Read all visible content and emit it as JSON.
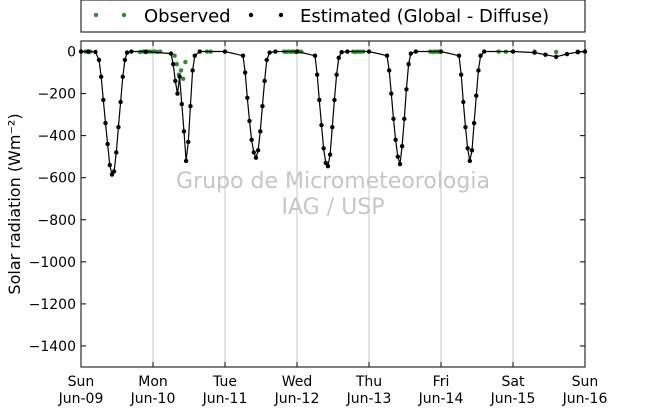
{
  "chart_data": {
    "type": "scatter",
    "title": "",
    "xlabel": "",
    "ylabel": "Solar radiation (Wm⁻²)",
    "ylim": [
      -1500,
      50
    ],
    "xlim": [
      0,
      7
    ],
    "yticks": [
      0,
      -200,
      -400,
      -600,
      -800,
      -1000,
      -1200,
      -1400
    ],
    "x_ticks": [
      {
        "day": "Sun",
        "date": "Jun-09",
        "x": 0
      },
      {
        "day": "Mon",
        "date": "Jun-10",
        "x": 1
      },
      {
        "day": "Tue",
        "date": "Jun-11",
        "x": 2
      },
      {
        "day": "Wed",
        "date": "Jun-12",
        "x": 3
      },
      {
        "day": "Thu",
        "date": "Jun-13",
        "x": 4
      },
      {
        "day": "Fri",
        "date": "Jun-14",
        "x": 5
      },
      {
        "day": "Sat",
        "date": "Jun-15",
        "x": 6
      },
      {
        "day": "Sun",
        "date": "Jun-16",
        "x": 7
      }
    ],
    "grid": "vertical",
    "legend_position": "top",
    "watermark": [
      "Grupo de Micrometeorologia",
      "IAG / USP"
    ],
    "series": [
      {
        "name": "Observed",
        "color": "#2e8b2e",
        "points": [
          [
            0.06,
            0
          ],
          [
            0.1,
            -2
          ],
          [
            0.13,
            0
          ],
          [
            0.82,
            -2
          ],
          [
            0.86,
            0
          ],
          [
            0.9,
            -3
          ],
          [
            0.94,
            0
          ],
          [
            0.98,
            -1
          ],
          [
            1.02,
            0
          ],
          [
            1.06,
            -2
          ],
          [
            1.1,
            0
          ],
          [
            1.3,
            -20
          ],
          [
            1.33,
            -60
          ],
          [
            1.36,
            -110
          ],
          [
            1.39,
            -90
          ],
          [
            1.42,
            -130
          ],
          [
            1.45,
            -50
          ],
          [
            1.75,
            0
          ],
          [
            1.8,
            -1
          ],
          [
            2.82,
            0
          ],
          [
            2.85,
            -2
          ],
          [
            2.88,
            0
          ],
          [
            2.92,
            -1
          ],
          [
            2.95,
            0
          ],
          [
            2.98,
            -2
          ],
          [
            3.02,
            0
          ],
          [
            3.06,
            -1
          ],
          [
            3.78,
            0
          ],
          [
            3.81,
            -2
          ],
          [
            3.84,
            0
          ],
          [
            3.88,
            -1
          ],
          [
            3.92,
            0
          ],
          [
            4.85,
            0
          ],
          [
            4.88,
            -2
          ],
          [
            4.91,
            0
          ],
          [
            4.94,
            -1
          ],
          [
            4.97,
            0
          ],
          [
            5.8,
            0
          ],
          [
            5.9,
            -1
          ],
          [
            6.3,
            0
          ],
          [
            6.6,
            -2
          ],
          [
            6.9,
            0
          ]
        ]
      },
      {
        "name": "Estimated (Global - Diffuse)",
        "color": "#000000",
        "points": [
          [
            0.0,
            0
          ],
          [
            0.1,
            0
          ],
          [
            0.2,
            -2
          ],
          [
            0.25,
            -40
          ],
          [
            0.28,
            -120
          ],
          [
            0.31,
            -230
          ],
          [
            0.34,
            -340
          ],
          [
            0.37,
            -440
          ],
          [
            0.4,
            -540
          ],
          [
            0.43,
            -585
          ],
          [
            0.46,
            -570
          ],
          [
            0.49,
            -480
          ],
          [
            0.52,
            -360
          ],
          [
            0.55,
            -240
          ],
          [
            0.58,
            -120
          ],
          [
            0.61,
            -40
          ],
          [
            0.64,
            -5
          ],
          [
            0.7,
            0
          ],
          [
            0.9,
            0
          ],
          [
            1.25,
            -10
          ],
          [
            1.28,
            -60
          ],
          [
            1.31,
            -140
          ],
          [
            1.34,
            -200
          ],
          [
            1.37,
            -120
          ],
          [
            1.4,
            -250
          ],
          [
            1.43,
            -380
          ],
          [
            1.46,
            -520
          ],
          [
            1.49,
            -430
          ],
          [
            1.52,
            -260
          ],
          [
            1.55,
            -90
          ],
          [
            1.58,
            -20
          ],
          [
            1.65,
            0
          ],
          [
            2.0,
            0
          ],
          [
            2.25,
            -20
          ],
          [
            2.28,
            -100
          ],
          [
            2.31,
            -220
          ],
          [
            2.34,
            -330
          ],
          [
            2.37,
            -420
          ],
          [
            2.4,
            -480
          ],
          [
            2.43,
            -505
          ],
          [
            2.46,
            -470
          ],
          [
            2.49,
            -380
          ],
          [
            2.52,
            -260
          ],
          [
            2.55,
            -140
          ],
          [
            2.58,
            -40
          ],
          [
            2.62,
            -5
          ],
          [
            2.7,
            0
          ],
          [
            3.0,
            0
          ],
          [
            3.25,
            -20
          ],
          [
            3.28,
            -110
          ],
          [
            3.31,
            -230
          ],
          [
            3.34,
            -350
          ],
          [
            3.37,
            -460
          ],
          [
            3.4,
            -530
          ],
          [
            3.43,
            -545
          ],
          [
            3.46,
            -490
          ],
          [
            3.49,
            -360
          ],
          [
            3.52,
            -230
          ],
          [
            3.55,
            -110
          ],
          [
            3.58,
            -30
          ],
          [
            3.62,
            -3
          ],
          [
            3.7,
            0
          ],
          [
            4.0,
            0
          ],
          [
            4.25,
            -20
          ],
          [
            4.28,
            -90
          ],
          [
            4.31,
            -200
          ],
          [
            4.34,
            -320
          ],
          [
            4.37,
            -420
          ],
          [
            4.4,
            -500
          ],
          [
            4.43,
            -535
          ],
          [
            4.46,
            -450
          ],
          [
            4.49,
            -320
          ],
          [
            4.52,
            -180
          ],
          [
            4.55,
            -60
          ],
          [
            4.58,
            -10
          ],
          [
            4.65,
            0
          ],
          [
            5.0,
            0
          ],
          [
            5.25,
            -20
          ],
          [
            5.28,
            -110
          ],
          [
            5.31,
            -240
          ],
          [
            5.34,
            -360
          ],
          [
            5.37,
            -460
          ],
          [
            5.4,
            -520
          ],
          [
            5.43,
            -470
          ],
          [
            5.46,
            -340
          ],
          [
            5.49,
            -210
          ],
          [
            5.52,
            -90
          ],
          [
            5.55,
            -20
          ],
          [
            5.6,
            0
          ],
          [
            6.0,
            0
          ],
          [
            6.3,
            -5
          ],
          [
            6.45,
            -15
          ],
          [
            6.6,
            -25
          ],
          [
            6.75,
            -12
          ],
          [
            6.9,
            -3
          ],
          [
            7.0,
            0
          ]
        ]
      }
    ]
  }
}
